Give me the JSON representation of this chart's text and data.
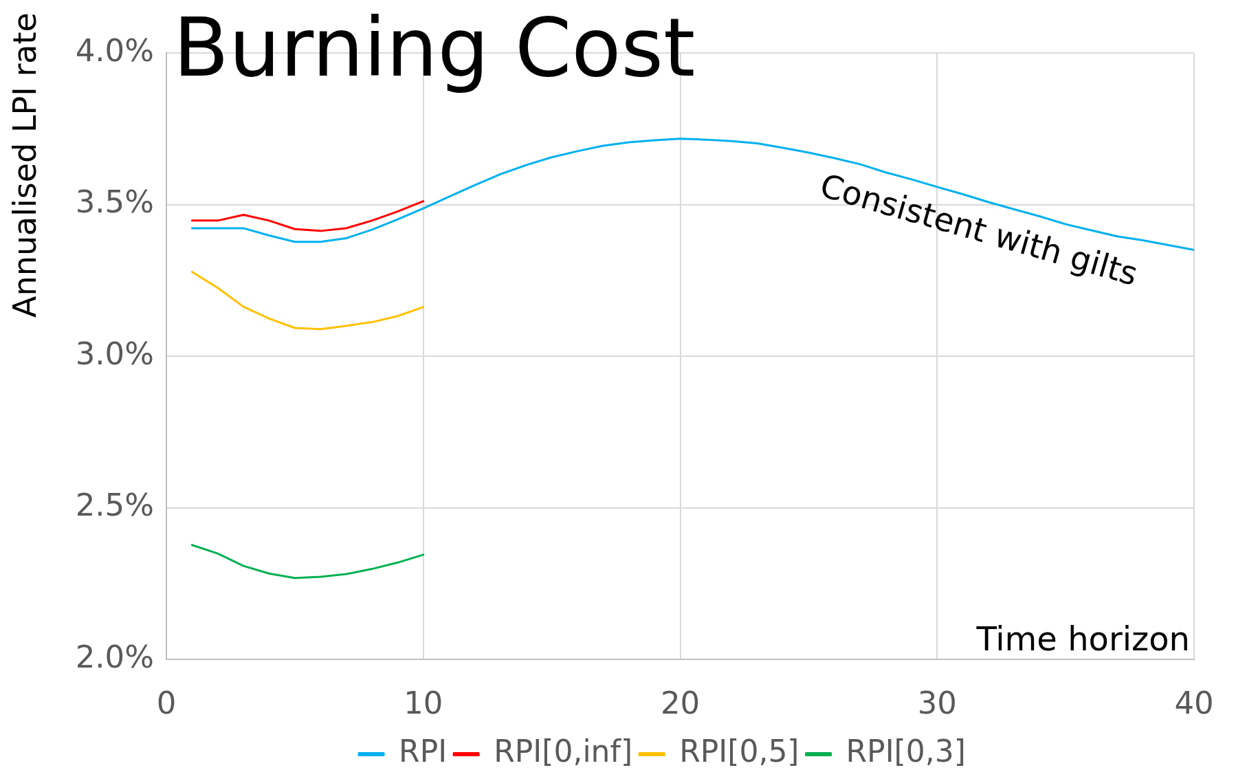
{
  "chart_data": {
    "type": "line",
    "title": "Burning Cost",
    "xlabel": "Time horizon",
    "ylabel": "Annualised LPI rate",
    "annotations": [
      "Consistent with gilts"
    ],
    "series": [
      {
        "name": "RPI",
        "color": "#00b0f0",
        "x": [
          1,
          2,
          3,
          4,
          5,
          6,
          7,
          8,
          9,
          10,
          11,
          12,
          13,
          14,
          15,
          16,
          17,
          18,
          19,
          20,
          21,
          22,
          23,
          24,
          25,
          26,
          27,
          28,
          29,
          30,
          31,
          32,
          33,
          34,
          35,
          36,
          37,
          38,
          39,
          40
        ],
        "values": [
          3.422,
          3.422,
          3.422,
          3.398,
          3.377,
          3.377,
          3.389,
          3.417,
          3.451,
          3.487,
          3.526,
          3.564,
          3.6,
          3.63,
          3.656,
          3.676,
          3.694,
          3.705,
          3.712,
          3.717,
          3.714,
          3.709,
          3.702,
          3.687,
          3.671,
          3.653,
          3.633,
          3.606,
          3.583,
          3.558,
          3.534,
          3.508,
          3.484,
          3.461,
          3.435,
          3.415,
          3.395,
          3.382,
          3.366,
          3.35
        ]
      },
      {
        "name": "RPI[0,inf]",
        "color": "#ff0000",
        "x": [
          1,
          2,
          3,
          4,
          5,
          6,
          7,
          8,
          9,
          10
        ],
        "values": [
          3.447,
          3.447,
          3.466,
          3.447,
          3.419,
          3.413,
          3.422,
          3.447,
          3.477,
          3.511
        ]
      },
      {
        "name": "RPI[0,5]",
        "color": "#ffc000",
        "x": [
          1,
          2,
          3,
          4,
          5,
          6,
          7,
          8,
          9,
          10
        ],
        "values": [
          3.278,
          3.225,
          3.163,
          3.124,
          3.093,
          3.089,
          3.1,
          3.112,
          3.132,
          3.162
        ]
      },
      {
        "name": "RPI[0,3]",
        "color": "#00b050",
        "x": [
          1,
          2,
          3,
          4,
          5,
          6,
          7,
          8,
          9,
          10
        ],
        "values": [
          2.377,
          2.349,
          2.308,
          2.283,
          2.268,
          2.272,
          2.281,
          2.298,
          2.319,
          2.345
        ]
      }
    ],
    "xlim": [
      0,
      40
    ],
    "xticks": [
      0,
      10,
      20,
      30,
      40
    ],
    "ylim": [
      2,
      4
    ],
    "yticks": [
      {
        "value": 2,
        "label": "2.0%"
      },
      {
        "value": 2.5,
        "label": "2.5%"
      },
      {
        "value": 3,
        "label": "3.0%"
      },
      {
        "value": 3.5,
        "label": "3.5%"
      },
      {
        "value": 4,
        "label": "4.0%"
      }
    ],
    "grid": true,
    "legend": "bottom"
  }
}
